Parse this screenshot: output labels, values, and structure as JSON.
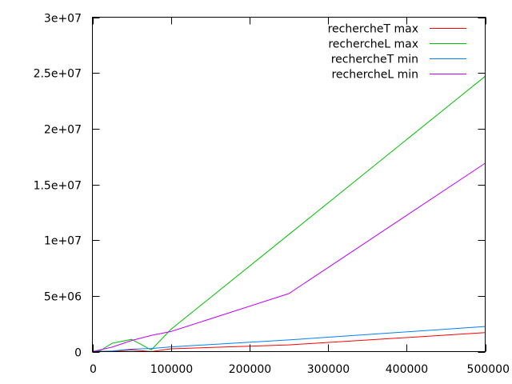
{
  "chart_data": {
    "type": "line",
    "title": "",
    "xlabel": "",
    "ylabel": "",
    "xlim": [
      0,
      500000
    ],
    "ylim": [
      0,
      30000000
    ],
    "grid": false,
    "legend_position": "top-right",
    "x_ticks": [
      {
        "value": 0,
        "label": "0"
      },
      {
        "value": 100000,
        "label": "100000"
      },
      {
        "value": 200000,
        "label": "200000"
      },
      {
        "value": 300000,
        "label": "300000"
      },
      {
        "value": 400000,
        "label": "400000"
      },
      {
        "value": 500000,
        "label": "500000"
      }
    ],
    "y_ticks": [
      {
        "value": 0,
        "label": "0"
      },
      {
        "value": 5000000,
        "label": "5e+06"
      },
      {
        "value": 10000000,
        "label": "1e+07"
      },
      {
        "value": 15000000,
        "label": "1.5e+07"
      },
      {
        "value": 20000000,
        "label": "2e+07"
      },
      {
        "value": 25000000,
        "label": "2.5e+07"
      },
      {
        "value": 30000000,
        "label": "3e+07"
      }
    ],
    "series": [
      {
        "name": "rechercheT max",
        "color": "#ff0000",
        "points": [
          [
            0,
            0
          ],
          [
            25000,
            30000
          ],
          [
            50000,
            150000
          ],
          [
            75000,
            0
          ],
          [
            100000,
            250000
          ],
          [
            250000,
            600000
          ],
          [
            500000,
            1700000
          ]
        ]
      },
      {
        "name": "rechercheL max",
        "color": "#00c000",
        "points": [
          [
            0,
            0
          ],
          [
            10000,
            80000
          ],
          [
            25000,
            750000
          ],
          [
            50000,
            1100000
          ],
          [
            75000,
            150000
          ],
          [
            100000,
            2000000
          ],
          [
            250000,
            10500000
          ],
          [
            500000,
            24700000
          ]
        ]
      },
      {
        "name": "rechercheT min",
        "color": "#0080ff",
        "points": [
          [
            0,
            0
          ],
          [
            25000,
            50000
          ],
          [
            50000,
            220000
          ],
          [
            75000,
            280000
          ],
          [
            100000,
            420000
          ],
          [
            250000,
            1050000
          ],
          [
            500000,
            2250000
          ]
        ]
      },
      {
        "name": "rechercheL min",
        "color": "#c000ff",
        "points": [
          [
            0,
            0
          ],
          [
            25000,
            400000
          ],
          [
            50000,
            1000000
          ],
          [
            75000,
            1450000
          ],
          [
            100000,
            1800000
          ],
          [
            250000,
            5200000
          ],
          [
            500000,
            16900000
          ]
        ]
      }
    ]
  }
}
